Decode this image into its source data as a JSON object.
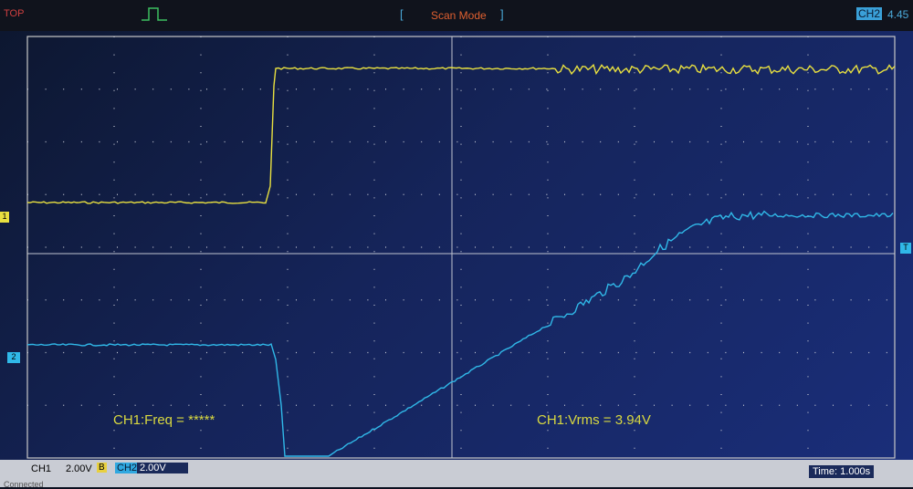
{
  "header": {
    "left": "TOP",
    "mode": "Scan Mode",
    "trigger_channel": "CH2",
    "trigger_value": "4.45"
  },
  "markers": {
    "ch1": "1",
    "ch2": "2",
    "trigger": "T"
  },
  "measurements": {
    "freq": "CH1:Freq = *****",
    "vrms": "CH1:Vrms = 3.94V"
  },
  "footer": {
    "ch1_label": "CH1",
    "ch1_scale": "2.00V",
    "ch1_flag": "B",
    "ch2_label": "CH2",
    "ch2_scale": "2.00V",
    "time": "Time: 1.000s",
    "status": "Connected"
  }
}
